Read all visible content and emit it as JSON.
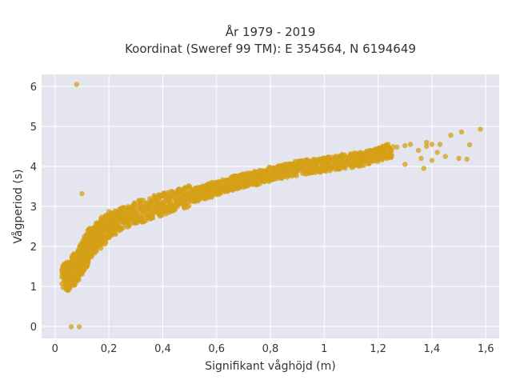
{
  "chart_data": {
    "type": "scatter",
    "title": "År 1979 - 2019",
    "subtitle": "Koordinat (Sweref 99 TM): E 354564, N 6194649",
    "xlabel": "Signifikant våghöjd (m)",
    "ylabel": "Vågperiod (s)",
    "xlim": [
      -0.05,
      1.65
    ],
    "ylim": [
      -0.3,
      6.3
    ],
    "x_ticks": [
      0,
      0.2,
      0.4,
      0.6,
      0.8,
      1,
      1.2,
      1.4,
      1.6
    ],
    "x_tick_labels": [
      "0",
      "0,2",
      "0,4",
      "0,6",
      "0,8",
      "1",
      "1,2",
      "1,4",
      "1,6"
    ],
    "y_ticks": [
      0,
      1,
      2,
      3,
      4,
      5,
      6
    ],
    "y_tick_labels": [
      "0",
      "1",
      "2",
      "3",
      "4",
      "5",
      "6"
    ],
    "grid": true,
    "legend": "none",
    "colors": {
      "marker": "#D4A017",
      "plot_bg": "#E5E5EF",
      "grid": "#FFFFFF"
    },
    "series": [
      {
        "points": [
          [
            0.03,
            1.22
          ],
          [
            0.05,
            1.25
          ],
          [
            0.06,
            1.3
          ],
          [
            0.07,
            1.4
          ],
          [
            0.08,
            1.5
          ],
          [
            0.09,
            1.6
          ],
          [
            0.1,
            1.7
          ],
          [
            0.11,
            1.8
          ],
          [
            0.12,
            1.95
          ],
          [
            0.13,
            2.1
          ],
          [
            0.15,
            2.2
          ],
          [
            0.17,
            2.35
          ],
          [
            0.2,
            2.5
          ],
          [
            0.22,
            2.6
          ],
          [
            0.25,
            2.7
          ],
          [
            0.3,
            2.85
          ],
          [
            0.35,
            2.95
          ],
          [
            0.4,
            3.05
          ],
          [
            0.45,
            3.15
          ],
          [
            0.5,
            3.25
          ],
          [
            0.55,
            3.35
          ],
          [
            0.6,
            3.45
          ],
          [
            0.65,
            3.55
          ],
          [
            0.7,
            3.65
          ],
          [
            0.75,
            3.72
          ],
          [
            0.8,
            3.8
          ],
          [
            0.85,
            3.88
          ],
          [
            0.9,
            3.95
          ],
          [
            0.95,
            4.0
          ],
          [
            1.0,
            4.05
          ],
          [
            1.05,
            4.1
          ],
          [
            1.1,
            4.15
          ],
          [
            1.15,
            4.2
          ],
          [
            1.2,
            4.3
          ],
          [
            1.25,
            4.4
          ],
          [
            0.08,
            6.05
          ],
          [
            0.1,
            3.32
          ],
          [
            0.06,
            -0.01
          ],
          [
            0.09,
            -0.01
          ],
          [
            1.23,
            4.52
          ],
          [
            1.27,
            4.48
          ],
          [
            1.3,
            4.52
          ],
          [
            1.32,
            4.55
          ],
          [
            1.35,
            4.4
          ],
          [
            1.38,
            4.5
          ],
          [
            1.4,
            4.55
          ],
          [
            1.42,
            4.35
          ],
          [
            1.45,
            4.25
          ],
          [
            1.47,
            4.78
          ],
          [
            1.5,
            4.2
          ],
          [
            1.51,
            4.86
          ],
          [
            1.53,
            4.18
          ],
          [
            1.54,
            4.54
          ],
          [
            1.58,
            4.93
          ],
          [
            1.36,
            4.2
          ],
          [
            1.4,
            4.15
          ],
          [
            1.37,
            3.95
          ],
          [
            1.3,
            4.05
          ],
          [
            1.43,
            4.55
          ],
          [
            1.38,
            4.6
          ]
        ]
      }
    ]
  }
}
